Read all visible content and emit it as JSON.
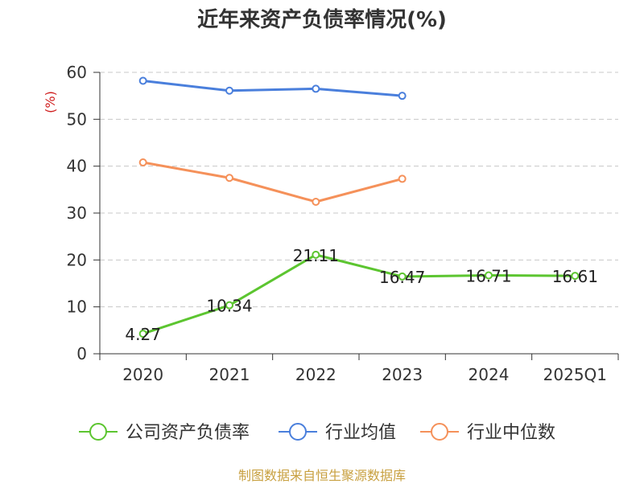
{
  "chart_data": {
    "type": "line",
    "title": "近年来资产负债率情况(%)",
    "ylabel": "(%)",
    "xlabel": "",
    "categories": [
      "2020",
      "2021",
      "2022",
      "2023",
      "2024",
      "2025Q1"
    ],
    "ylim": [
      0,
      60
    ],
    "yticks": [
      "0",
      "10",
      "20",
      "30",
      "40",
      "50",
      "60"
    ],
    "grid": true,
    "legend_position": "bottom",
    "series": [
      {
        "name": "公司资产负债率",
        "color": "#5cc530",
        "values": [
          4.27,
          10.34,
          21.11,
          16.47,
          16.71,
          16.61
        ],
        "labels": [
          "4.27",
          "10.34",
          "21.11",
          "16.47",
          "16.71",
          "16.61"
        ]
      },
      {
        "name": "行业均值",
        "color": "#4a7fdc",
        "values": [
          58.2,
          56.1,
          56.5,
          55.0,
          null,
          null
        ]
      },
      {
        "name": "行业中位数",
        "color": "#f5915a",
        "values": [
          40.8,
          37.5,
          32.4,
          37.3,
          null,
          null
        ]
      }
    ]
  },
  "source": "制图数据来自恒生聚源数据库"
}
